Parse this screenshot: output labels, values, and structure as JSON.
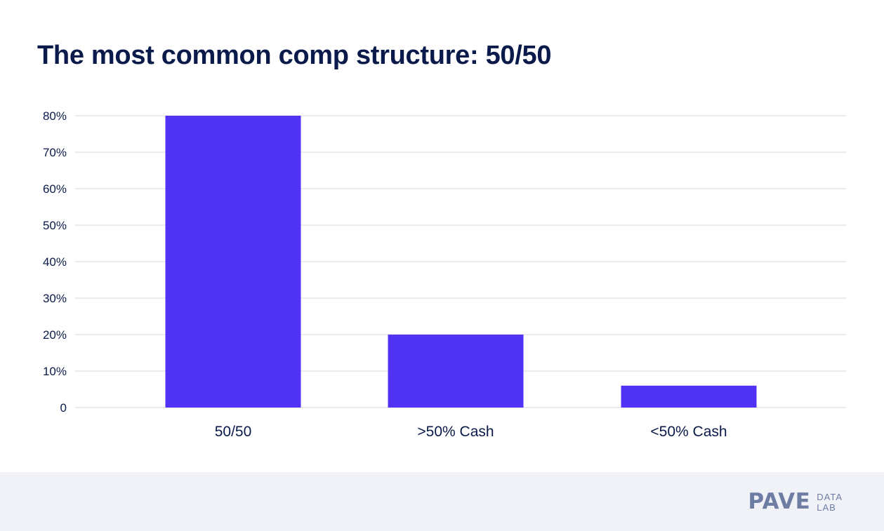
{
  "title": "The most common comp structure: 50/50",
  "chart_data": {
    "type": "bar",
    "title": "The most common comp structure: 50/50",
    "categories": [
      "50/50",
      ">50% Cash",
      "<50% Cash"
    ],
    "values": [
      80,
      20,
      6
    ],
    "ylim": [
      0,
      80
    ],
    "yticks": [
      0,
      10,
      20,
      30,
      40,
      50,
      60,
      70,
      80
    ],
    "ytick_labels": [
      "0",
      "10%",
      "20%",
      "30%",
      "40%",
      "50%",
      "60%",
      "70%",
      "80%"
    ],
    "xlabel": "",
    "ylabel": "",
    "grid": true,
    "colors": {
      "bar": "#5033f5",
      "grid": "#e3e5ec",
      "text": "#0a1a4a"
    }
  },
  "footer": {
    "brand": "PAVE",
    "brand_sub_line1": "DATA",
    "brand_sub_line2": "LAB"
  }
}
